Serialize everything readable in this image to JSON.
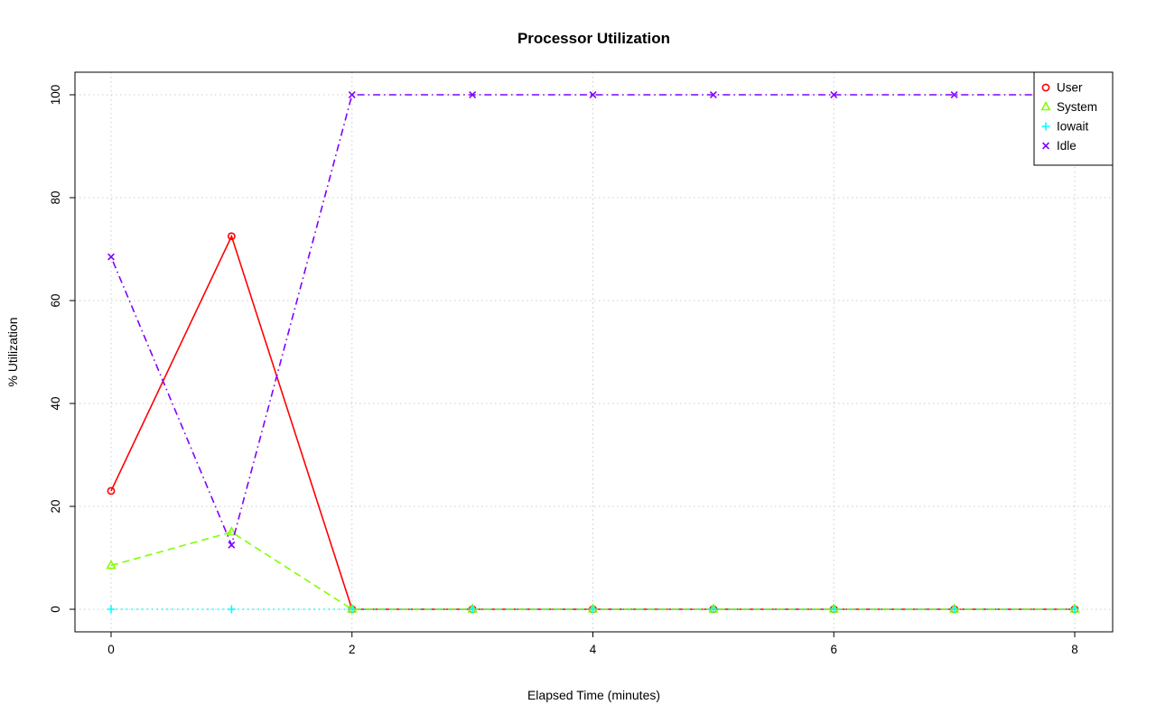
{
  "chart_data": {
    "type": "line",
    "title": "Processor Utilization",
    "xlabel": "Elapsed Time (minutes)",
    "ylabel": "% Utilization",
    "x": [
      0,
      1,
      2,
      3,
      4,
      5,
      6,
      7,
      8
    ],
    "xlim": [
      0,
      8
    ],
    "ylim": [
      0,
      100
    ],
    "x_ticks": [
      0,
      2,
      4,
      6,
      8
    ],
    "y_ticks": [
      0,
      20,
      40,
      60,
      80,
      100
    ],
    "grid": true,
    "grid_style": "dotted",
    "legend_position": "top-right",
    "series": [
      {
        "name": "User",
        "color": "#FF0000",
        "marker": "circle",
        "linetype": "solid",
        "values": [
          23,
          72.5,
          0,
          0,
          0,
          0,
          0,
          0,
          0
        ]
      },
      {
        "name": "System",
        "color": "#80FF00",
        "marker": "triangle",
        "linetype": "dashed",
        "values": [
          8.5,
          15,
          0,
          0,
          0,
          0,
          0,
          0,
          0
        ]
      },
      {
        "name": "Iowait",
        "color": "#00FFFF",
        "marker": "plus",
        "linetype": "dotted",
        "values": [
          0,
          0,
          0,
          0,
          0,
          0,
          0,
          0,
          0
        ]
      },
      {
        "name": "Idle",
        "color": "#8000FF",
        "marker": "x",
        "linetype": "dotdash",
        "values": [
          68.5,
          12.5,
          100,
          100,
          100,
          100,
          100,
          100,
          100
        ]
      }
    ]
  }
}
